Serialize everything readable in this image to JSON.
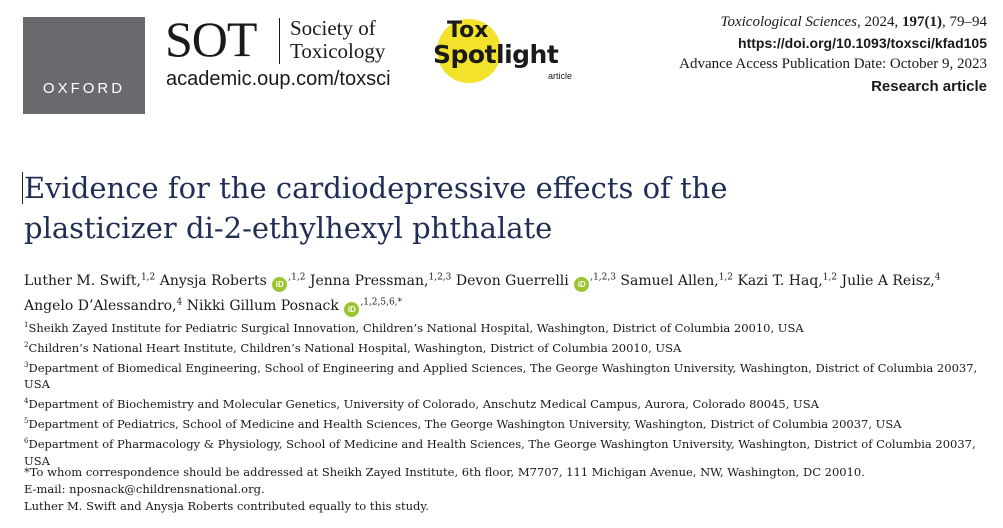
{
  "logos": {
    "oxford": "OXFORD",
    "sot_abbrev": "SOT",
    "sot_name_line1": "Society of",
    "sot_name_line2": "Toxicology",
    "sot_url": "academic.oup.com/toxsci",
    "toxspot_tox": "Tox",
    "toxspot_spotlight": "Spotlight",
    "toxspot_article": "article",
    "toxspot_color": "#f3e22b"
  },
  "meta": {
    "journal_name": "Toxicological Sciences",
    "journal_rest": ", 2024, 197(1), 79–94",
    "doi": "https://doi.org/10.1093/toxsci/kfad105",
    "advance_access": "Advance Access Publication Date: October 9, 2023",
    "article_type": "Research article"
  },
  "title": {
    "line1": "Evidence for the cardiodepressive effects of the",
    "line2": "plasticizer di-2-ethylhexyl phthalate"
  },
  "authors": [
    {
      "name": "Luther M. Swift,",
      "sup": "1,2",
      "orcid": false
    },
    {
      "name": "Anysja Roberts",
      "sup": ",1,2",
      "orcid": true
    },
    {
      "name": "Jenna Pressman,",
      "sup": "1,2,3",
      "orcid": false
    },
    {
      "name": "Devon Guerrelli",
      "sup": ",1,2,3",
      "orcid": true
    },
    {
      "name": "Samuel Allen,",
      "sup": "1,2",
      "orcid": false
    },
    {
      "name": "Kazi T. Haq,",
      "sup": "1,2",
      "orcid": false
    },
    {
      "name": "Julie A Reisz,",
      "sup": "4",
      "orcid": false
    },
    {
      "name": "Angelo D’Alessandro,",
      "sup": "4",
      "orcid": false
    },
    {
      "name": "Nikki Gillum Posnack",
      "sup": ",1,2,5,6,*",
      "orcid": true
    }
  ],
  "orcid_icon": "iD",
  "orcid_color": "#9bc431",
  "affiliations": [
    {
      "num": "1",
      "text": "Sheikh Zayed Institute for Pediatric Surgical Innovation, Children’s National Hospital, Washington, District of Columbia 20010, USA"
    },
    {
      "num": "2",
      "text": "Children’s National Heart Institute, Children’s National Hospital, Washington, District of Columbia 20010, USA"
    },
    {
      "num": "3",
      "text": "Department of Biomedical Engineering, School of Engineering and Applied Sciences, The George Washington University, Washington, District of Columbia 20037, USA"
    },
    {
      "num": "4",
      "text": "Department of Biochemistry and Molecular Genetics, University of Colorado, Anschutz Medical Campus, Aurora, Colorado 80045, USA"
    },
    {
      "num": "5",
      "text": "Department of Pediatrics, School of Medicine and Health Sciences, The George Washington University, Washington, District of Columbia 20037, USA"
    },
    {
      "num": "6",
      "text": "Department of Pharmacology & Physiology, School of Medicine and Health Sciences, The George Washington University, Washington, District of Columbia 20037, USA"
    }
  ],
  "correspondence": {
    "line1": "*To whom correspondence should be addressed at Sheikh Zayed Institute, 6th floor, M7707, 111 Michigan Avenue, NW, Washington, DC 20010.",
    "line2": "E-mail: nposnack@childrensnational.org.",
    "line3": "Luther M. Swift and Anysja Roberts contributed equally to this study."
  }
}
